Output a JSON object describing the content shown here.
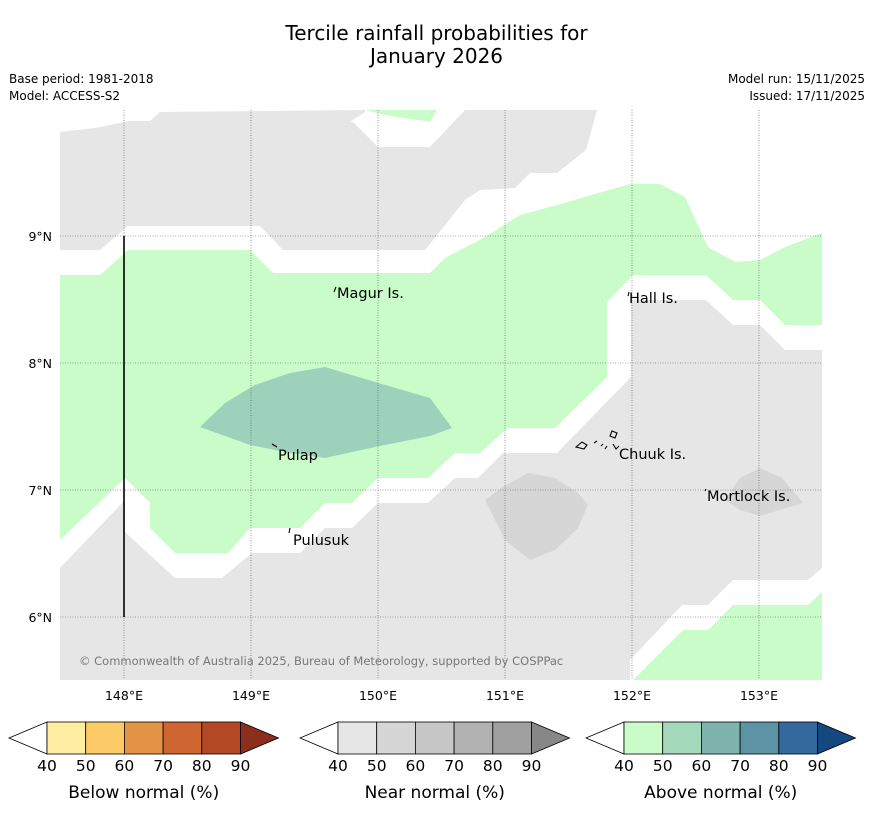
{
  "title_line1": "Tercile rainfall probabilities for",
  "title_line2": "January 2026",
  "base_period": "Base period: 1981-2018",
  "model": "Model: ACCESS-S2",
  "model_run": "Model run: 15/11/2025",
  "issued": "Issued: 17/11/2025",
  "copyright": "© Commonwealth of Australia 2025, Bureau of Meteorology, supported by COSPPac",
  "map": {
    "lon_labels": [
      "148°E",
      "149°E",
      "150°E",
      "151°E",
      "152°E",
      "153°E"
    ],
    "lat_labels": [
      "9°N",
      "8°N",
      "7°N",
      "6°N"
    ],
    "place_labels": [
      "Magur Is.",
      "Hall Is.",
      "Pulap",
      "Chuuk Is.",
      "Mortlock Is.",
      "Pulusuk"
    ]
  },
  "colorbars": [
    {
      "label": "Below normal (%)",
      "ticks": [
        "40",
        "50",
        "60",
        "70",
        "80",
        "90"
      ],
      "colors": [
        "#ffeea1",
        "#fdca68",
        "#e39445",
        "#cf6530",
        "#b24924",
        "#8c2e1c"
      ]
    },
    {
      "label": "Near normal (%)",
      "ticks": [
        "40",
        "50",
        "60",
        "70",
        "80",
        "90"
      ],
      "colors": [
        "#e6e6e6",
        "#d6d6d6",
        "#c6c6c6",
        "#b2b2b2",
        "#a0a0a0",
        "#878787"
      ]
    },
    {
      "label": "Above normal (%)",
      "ticks": [
        "40",
        "50",
        "60",
        "70",
        "80",
        "90"
      ],
      "colors": [
        "#c9fcc9",
        "#a4d9bc",
        "#7fb4ae",
        "#5c93a5",
        "#336a9e",
        "#15487f"
      ]
    }
  ],
  "colors": {
    "near_40": "#e6e6e6",
    "near_50": "#d6d6d6",
    "above_40": "#c9fcc9",
    "above_50": "#9ed1bc"
  }
}
